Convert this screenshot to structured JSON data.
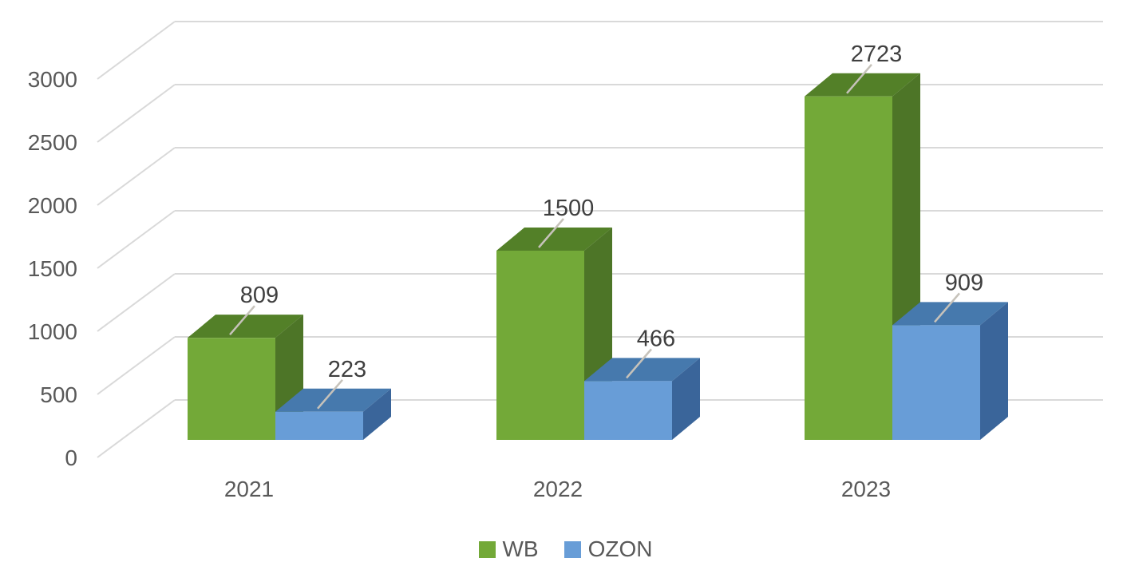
{
  "chart_data": {
    "type": "bar",
    "variant": "3d-clustered-column",
    "title": "",
    "xlabel": "",
    "ylabel": "",
    "categories": [
      "2021",
      "2022",
      "2023"
    ],
    "series": [
      {
        "name": "WB",
        "values": [
          809,
          1500,
          2723
        ],
        "color": "#73A938",
        "color_top": "#538028",
        "color_side": "#4D7527"
      },
      {
        "name": "OZON",
        "values": [
          223,
          466,
          909
        ],
        "color": "#689DD7",
        "color_top": "#4679AD",
        "color_side": "#3A659A"
      }
    ],
    "ylim": [
      0,
      3000
    ],
    "yticks": [
      0,
      500,
      1000,
      1500,
      2000,
      2500,
      3000
    ],
    "grid": true,
    "data_labels": true,
    "legend_position": "bottom",
    "colors": {
      "background": "#FFFFFF",
      "gridline": "#D9D9D9",
      "axis_text": "#595959",
      "category_text": "#595959",
      "data_label_text": "#3F3F3F",
      "leader_line": "#C6C2BA",
      "legend_text": "#595959"
    }
  }
}
